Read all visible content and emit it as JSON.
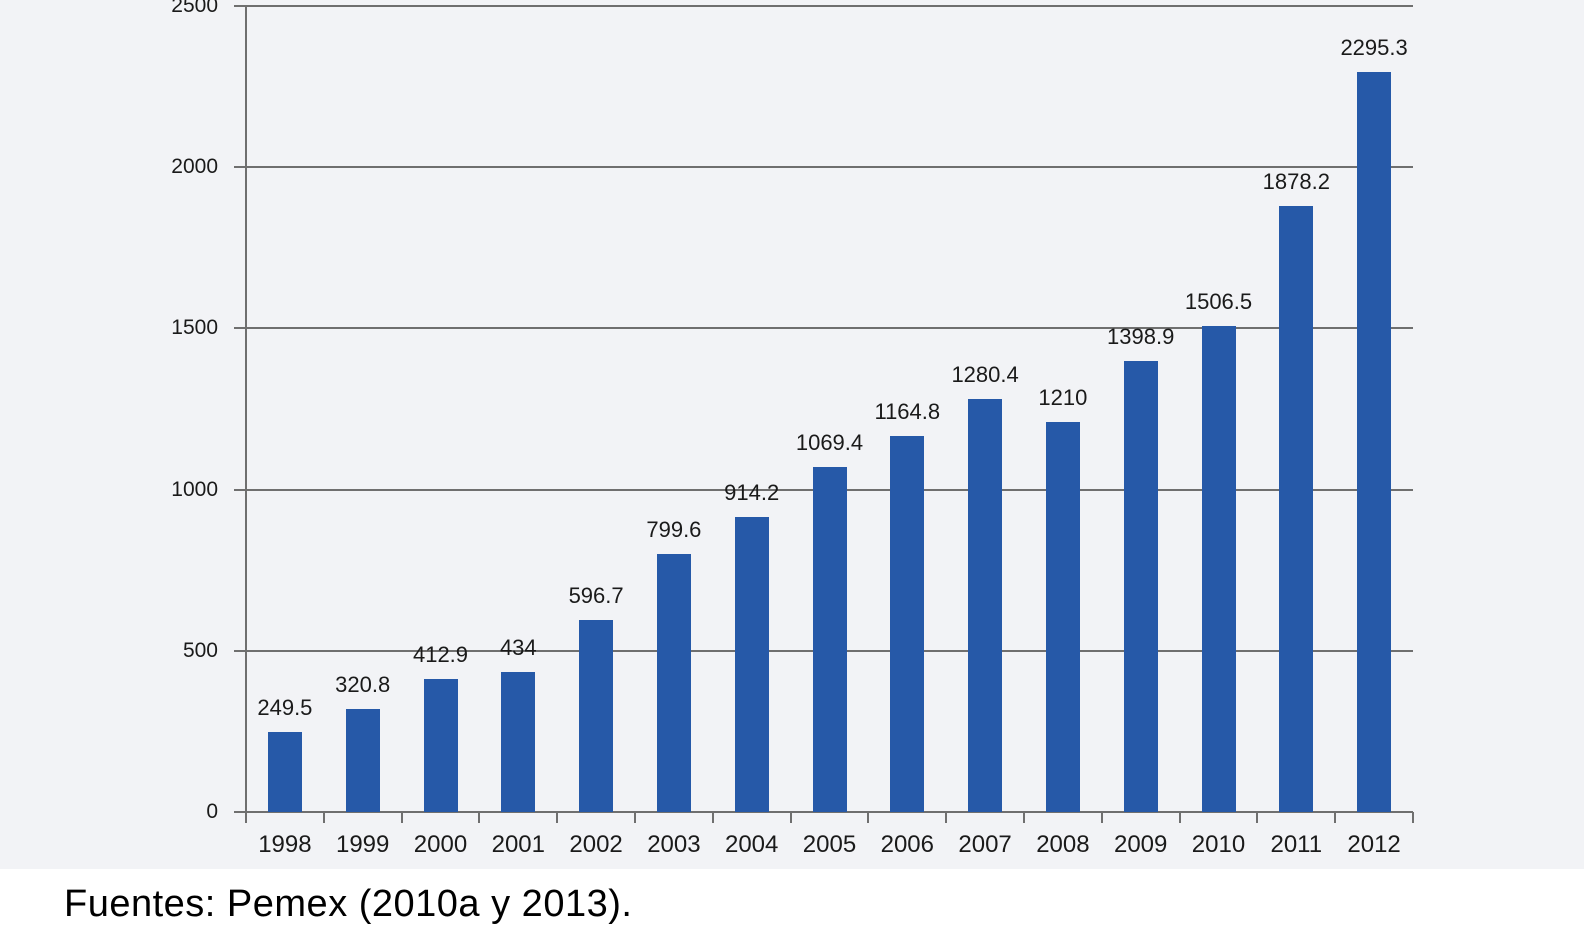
{
  "chart_data": {
    "type": "bar",
    "categories": [
      "1998",
      "1999",
      "2000",
      "2001",
      "2002",
      "2003",
      "2004",
      "2005",
      "2006",
      "2007",
      "2008",
      "2009",
      "2010",
      "2011",
      "2012"
    ],
    "values": [
      249.5,
      320.8,
      412.9,
      434,
      596.7,
      799.6,
      914.2,
      1069.4,
      1164.8,
      1280.4,
      1210,
      1398.9,
      1506.5,
      1878.2,
      2295.3
    ],
    "value_labels": [
      "249.5",
      "320.8",
      "412.9",
      "434",
      "596.7",
      "799.6",
      "914.2",
      "1069.4",
      "1164.8",
      "1280.4",
      "1210",
      "1398.9",
      "1506.5",
      "1878.2",
      "2295.3"
    ],
    "title": "",
    "xlabel": "",
    "ylabel": "",
    "ylim": [
      0,
      2500
    ],
    "yticks": [
      0,
      500,
      1000,
      1500,
      2000,
      2500
    ],
    "grid": true,
    "legend": false,
    "colors": {
      "bar": "#2659a8",
      "grid": "#6f6f6f",
      "axis": "#6f6f6f",
      "text": "#1a1a1a",
      "plot_background": "#f2f3f6",
      "page_background": "#ffffff"
    }
  },
  "source_note": "Fuentes: Pemex (2010a y 2013)."
}
